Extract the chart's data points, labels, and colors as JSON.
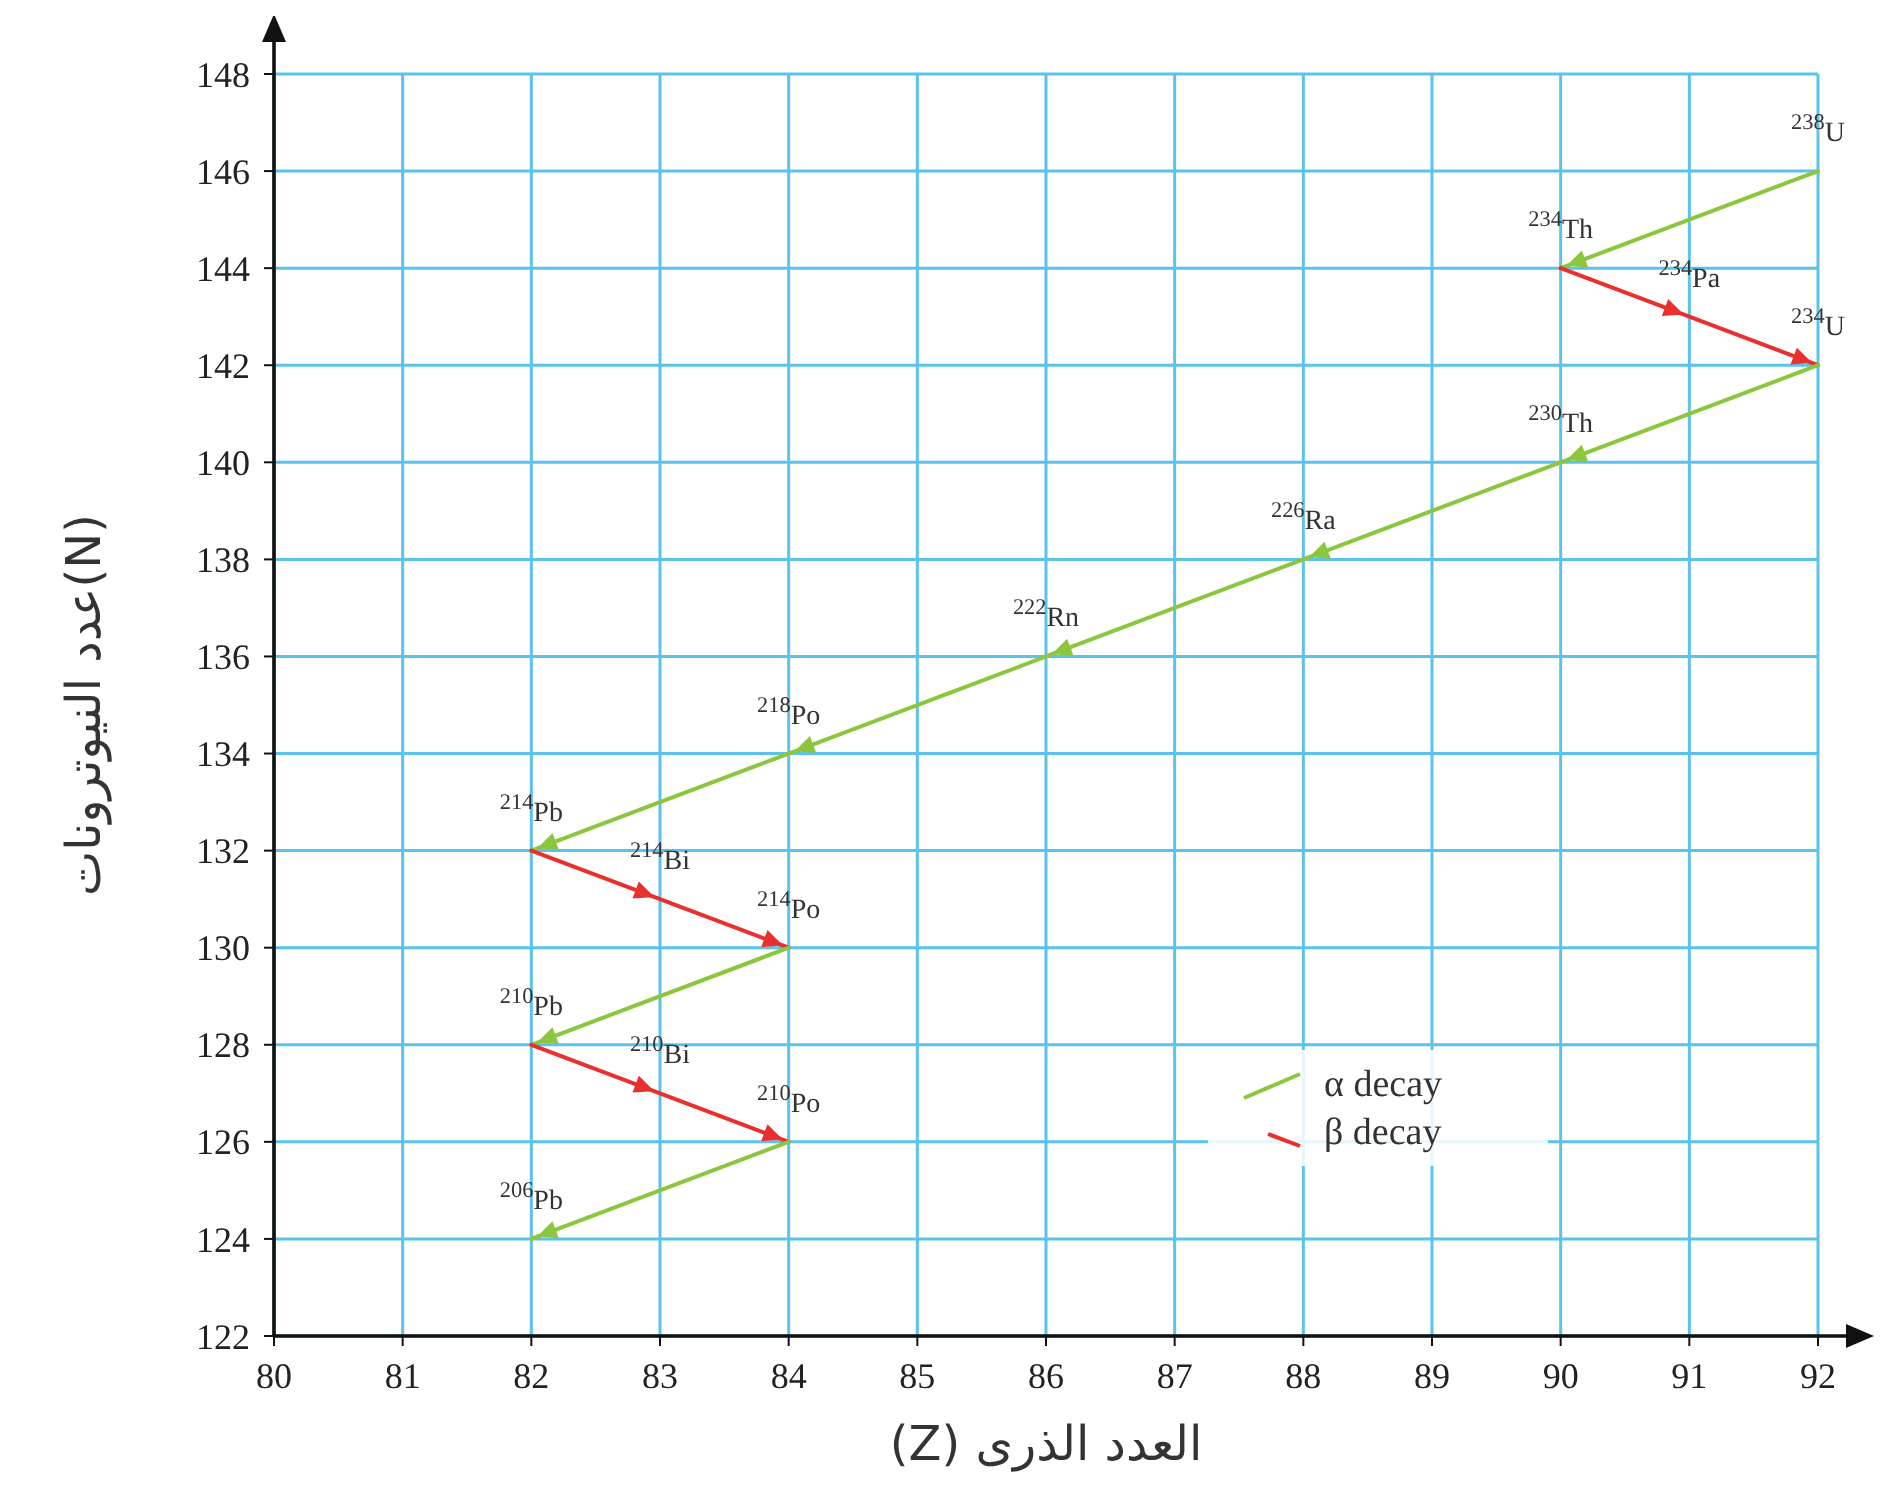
{
  "chart_data": {
    "type": "line",
    "xlabel": "العدد الذرى (Z)",
    "ylabel": "عدد النيوترونات(N)",
    "xlim": [
      80,
      92
    ],
    "xticks": [
      80,
      81,
      82,
      83,
      84,
      85,
      86,
      87,
      88,
      89,
      90,
      91,
      92
    ],
    "ylim": [
      122,
      148
    ],
    "yticks": [
      122,
      124,
      126,
      128,
      130,
      132,
      134,
      136,
      138,
      140,
      142,
      144,
      146,
      148
    ],
    "grid": true,
    "legend": "bottom right",
    "marker": "none",
    "line_style": "solid",
    "series": [
      {
        "name": "α decay",
        "color": "#8cc63f",
        "x": [
          92,
          90
        ],
        "values": [
          146,
          144
        ]
      },
      {
        "name": "β decay",
        "color": "#e8302f",
        "x": [
          90,
          91,
          92
        ],
        "values": [
          144,
          143,
          142
        ]
      },
      {
        "color": "#8cc63f",
        "x": [
          92,
          90,
          88,
          86,
          84,
          82
        ],
        "values": [
          142,
          140,
          138,
          136,
          134,
          132
        ]
      },
      {
        "color": "#e8302f",
        "x": [
          82,
          83,
          84
        ],
        "values": [
          132,
          131,
          130
        ]
      },
      {
        "color": "#8cc63f",
        "x": [
          84,
          82
        ],
        "values": [
          130,
          128
        ]
      },
      {
        "color": "#e8302f",
        "x": [
          82,
          83,
          84
        ],
        "values": [
          128,
          127,
          126
        ]
      },
      {
        "color": "#8cc63f",
        "x": [
          84,
          82
        ],
        "values": [
          126,
          124
        ]
      }
    ],
    "annotations": [
      {
        "text": "$^{238}$U",
        "x": 92,
        "y": 146
      },
      {
        "text": "$^{234}$Th",
        "x": 90,
        "y": 144
      },
      {
        "text": "$^{234}$Pa",
        "x": 91,
        "y": 143
      },
      {
        "text": "$^{234}$U",
        "x": 92,
        "y": 142
      },
      {
        "text": "$^{230}$Th",
        "x": 90,
        "y": 140
      },
      {
        "text": "$^{226}$Ra",
        "x": 88,
        "y": 138
      },
      {
        "text": "$^{222}$Rn",
        "x": 86,
        "y": 136
      },
      {
        "text": "$^{218}$Po",
        "x": 84,
        "y": 134
      },
      {
        "text": "$^{214}$Pb",
        "x": 82,
        "y": 132
      },
      {
        "text": "$^{214}$Bi",
        "x": 83,
        "y": 131
      },
      {
        "text": "$^{214}$Po",
        "x": 84,
        "y": 130
      },
      {
        "text": "$^{210}$Pb",
        "x": 82,
        "y": 128
      },
      {
        "text": "$^{210}$Bi",
        "x": 83,
        "y": 127
      },
      {
        "text": "$^{210}$Po",
        "x": 84,
        "y": 126
      },
      {
        "text": "$^{206}$Pb",
        "x": 82,
        "y": 124
      }
    ]
  }
}
